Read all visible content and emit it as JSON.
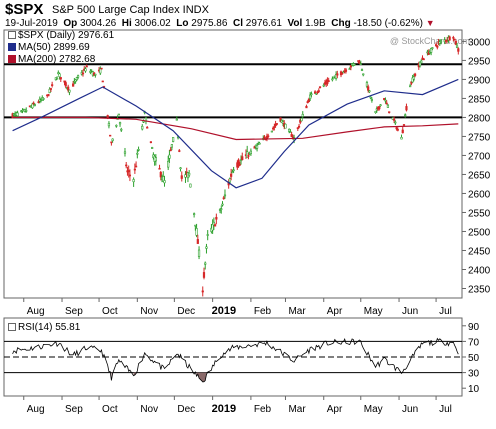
{
  "header": {
    "symbol": "$SPX",
    "description": "S&P 500 Large Cap Index  INDX",
    "date": "19-Jul-2019",
    "open_label": "Op",
    "open": "3004.26",
    "high_label": "Hi",
    "high": "3006.02",
    "low_label": "Lo",
    "low": "2975.86",
    "close_label": "Cl",
    "close": "2976.61",
    "volume_label": "Vol",
    "volume": "1.9B",
    "change_label": "Chg",
    "change": "-18.50 (-0.62%)",
    "watermark": "@ StockCharts.com"
  },
  "legend": {
    "price": "$SPX (Daily) 2976.61",
    "ma50": "MA(50) 2899.69",
    "ma200": "MA(200) 2782.68",
    "rsi": "RSI(14) 55.81"
  },
  "colors": {
    "up_candle": "#2ca02c",
    "down_candle": "#d62728",
    "ma50": "#1f2d8c",
    "ma200": "#b0112b",
    "rsi_fill": "#8a6a6a",
    "change_marker": "#b0112b"
  },
  "chart_data": [
    {
      "type": "candlestick",
      "x_tick_labels": [
        "Aug",
        "Sep",
        "Oct",
        "Nov",
        "Dec",
        "2019",
        "Feb",
        "Mar",
        "Apr",
        "May",
        "Jun",
        "Jul"
      ],
      "ylim": [
        2325,
        3030
      ],
      "y_ticks": [
        2350,
        2400,
        2450,
        2500,
        2550,
        2600,
        2650,
        2700,
        2750,
        2800,
        2850,
        2900,
        2950,
        3000
      ],
      "horizontal_lines": [
        2940,
        2800
      ],
      "grid": false,
      "series": [
        {
          "name": "$SPX (Daily)",
          "close_path": [
            {
              "x": "2018-07-23",
              "y": 2805
            },
            {
              "x": "2018-08-01",
              "y": 2815
            },
            {
              "x": "2018-08-10",
              "y": 2835
            },
            {
              "x": "2018-08-20",
              "y": 2855
            },
            {
              "x": "2018-08-29",
              "y": 2915
            },
            {
              "x": "2018-09-07",
              "y": 2872
            },
            {
              "x": "2018-09-14",
              "y": 2905
            },
            {
              "x": "2018-09-21",
              "y": 2930
            },
            {
              "x": "2018-09-28",
              "y": 2912
            },
            {
              "x": "2018-10-03",
              "y": 2925
            },
            {
              "x": "2018-10-11",
              "y": 2730
            },
            {
              "x": "2018-10-17",
              "y": 2810
            },
            {
              "x": "2018-10-24",
              "y": 2655
            },
            {
              "x": "2018-10-29",
              "y": 2640
            },
            {
              "x": "2018-11-07",
              "y": 2810
            },
            {
              "x": "2018-11-14",
              "y": 2700
            },
            {
              "x": "2018-11-23",
              "y": 2630
            },
            {
              "x": "2018-12-03",
              "y": 2790
            },
            {
              "x": "2018-12-07",
              "y": 2640
            },
            {
              "x": "2018-12-13",
              "y": 2650
            },
            {
              "x": "2018-12-19",
              "y": 2500
            },
            {
              "x": "2018-12-24",
              "y": 2351
            },
            {
              "x": "2018-12-28",
              "y": 2485
            },
            {
              "x": "2019-01-07",
              "y": 2550
            },
            {
              "x": "2019-01-18",
              "y": 2670
            },
            {
              "x": "2019-01-31",
              "y": 2705
            },
            {
              "x": "2019-02-14",
              "y": 2750
            },
            {
              "x": "2019-02-25",
              "y": 2795
            },
            {
              "x": "2019-03-08",
              "y": 2745
            },
            {
              "x": "2019-03-21",
              "y": 2855
            },
            {
              "x": "2019-04-05",
              "y": 2895
            },
            {
              "x": "2019-04-23",
              "y": 2935
            },
            {
              "x": "2019-04-30",
              "y": 2950
            },
            {
              "x": "2019-05-13",
              "y": 2812
            },
            {
              "x": "2019-05-20",
              "y": 2850
            },
            {
              "x": "2019-06-03",
              "y": 2745
            },
            {
              "x": "2019-06-10",
              "y": 2885
            },
            {
              "x": "2019-06-20",
              "y": 2955
            },
            {
              "x": "2019-07-03",
              "y": 2995
            },
            {
              "x": "2019-07-15",
              "y": 3014
            },
            {
              "x": "2019-07-19",
              "y": 2977
            }
          ]
        },
        {
          "name": "MA(50)",
          "values": [
            {
              "x": "2018-07-23",
              "y": 2765
            },
            {
              "x": "2018-08-15",
              "y": 2800
            },
            {
              "x": "2018-09-15",
              "y": 2850
            },
            {
              "x": "2018-10-04",
              "y": 2880
            },
            {
              "x": "2018-10-31",
              "y": 2830
            },
            {
              "x": "2018-11-30",
              "y": 2765
            },
            {
              "x": "2018-12-31",
              "y": 2660
            },
            {
              "x": "2019-01-20",
              "y": 2615
            },
            {
              "x": "2019-02-10",
              "y": 2640
            },
            {
              "x": "2019-02-28",
              "y": 2710
            },
            {
              "x": "2019-03-20",
              "y": 2780
            },
            {
              "x": "2019-04-20",
              "y": 2835
            },
            {
              "x": "2019-05-20",
              "y": 2870
            },
            {
              "x": "2019-06-20",
              "y": 2860
            },
            {
              "x": "2019-07-19",
              "y": 2900
            }
          ]
        },
        {
          "name": "MA(200)",
          "values": [
            {
              "x": "2018-07-23",
              "y": 2800
            },
            {
              "x": "2018-09-20",
              "y": 2800
            },
            {
              "x": "2018-10-31",
              "y": 2795
            },
            {
              "x": "2018-12-15",
              "y": 2770
            },
            {
              "x": "2019-01-20",
              "y": 2742
            },
            {
              "x": "2019-03-15",
              "y": 2745
            },
            {
              "x": "2019-04-20",
              "y": 2762
            },
            {
              "x": "2019-05-20",
              "y": 2775
            },
            {
              "x": "2019-06-20",
              "y": 2778
            },
            {
              "x": "2019-07-19",
              "y": 2783
            }
          ]
        }
      ]
    },
    {
      "type": "line",
      "title": "RSI(14) 55.81",
      "ylim": [
        0,
        100
      ],
      "y_ticks": [
        10,
        30,
        50,
        70,
        90
      ],
      "reference_lines": [
        30,
        50,
        70
      ],
      "x_tick_labels": [
        "Aug",
        "Sep",
        "Oct",
        "Nov",
        "Dec",
        "2019",
        "Feb",
        "Mar",
        "Apr",
        "May",
        "Jun",
        "Jul"
      ],
      "series": [
        {
          "name": "RSI(14)",
          "values": [
            {
              "x": "2018-07-23",
              "y": 58
            },
            {
              "x": "2018-08-10",
              "y": 62
            },
            {
              "x": "2018-08-29",
              "y": 68
            },
            {
              "x": "2018-09-10",
              "y": 52
            },
            {
              "x": "2018-09-21",
              "y": 62
            },
            {
              "x": "2018-10-03",
              "y": 58
            },
            {
              "x": "2018-10-11",
              "y": 24
            },
            {
              "x": "2018-10-17",
              "y": 45
            },
            {
              "x": "2018-10-29",
              "y": 26
            },
            {
              "x": "2018-11-07",
              "y": 55
            },
            {
              "x": "2018-11-23",
              "y": 33
            },
            {
              "x": "2018-12-03",
              "y": 55
            },
            {
              "x": "2018-12-14",
              "y": 35
            },
            {
              "x": "2018-12-24",
              "y": 18
            },
            {
              "x": "2019-01-07",
              "y": 52
            },
            {
              "x": "2019-01-18",
              "y": 62
            },
            {
              "x": "2019-02-14",
              "y": 68
            },
            {
              "x": "2019-03-08",
              "y": 45
            },
            {
              "x": "2019-03-21",
              "y": 60
            },
            {
              "x": "2019-04-05",
              "y": 68
            },
            {
              "x": "2019-04-30",
              "y": 70
            },
            {
              "x": "2019-05-13",
              "y": 38
            },
            {
              "x": "2019-05-20",
              "y": 47
            },
            {
              "x": "2019-06-03",
              "y": 30
            },
            {
              "x": "2019-06-20",
              "y": 67
            },
            {
              "x": "2019-07-03",
              "y": 70
            },
            {
              "x": "2019-07-15",
              "y": 68
            },
            {
              "x": "2019-07-19",
              "y": 56
            }
          ]
        }
      ]
    }
  ]
}
